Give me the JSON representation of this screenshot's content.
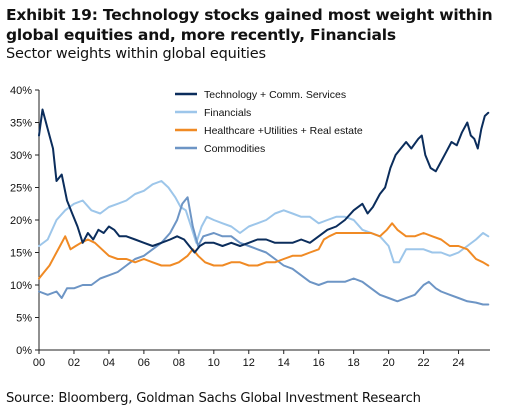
{
  "title": "Exhibit 19: Technology stocks gained most weight within global equities and, more recently, Financials",
  "subtitle": "Sector weights within global equities",
  "source": "Source: Bloomberg, Goldman Sachs Global Investment Research",
  "chart_data": {
    "type": "line",
    "xlabel": "",
    "ylabel": "",
    "xlim": [
      2000,
      2025.8
    ],
    "ylim": [
      0,
      40
    ],
    "x_ticks": [
      "00",
      "02",
      "04",
      "06",
      "08",
      "10",
      "12",
      "14",
      "16",
      "18",
      "20",
      "22",
      "24"
    ],
    "y_ticks": [
      "0%",
      "5%",
      "10%",
      "15%",
      "20%",
      "25%",
      "30%",
      "35%",
      "40%"
    ],
    "grid": false,
    "legend_position": "top-right",
    "series": [
      {
        "name": "Technology + Comm. Services",
        "color": "#0b2d5c",
        "points": [
          [
            2000,
            33
          ],
          [
            2000.2,
            37
          ],
          [
            2000.5,
            34
          ],
          [
            2000.8,
            31
          ],
          [
            2001,
            26
          ],
          [
            2001.3,
            27
          ],
          [
            2001.6,
            23
          ],
          [
            2001.9,
            21
          ],
          [
            2002.2,
            19
          ],
          [
            2002.5,
            16.5
          ],
          [
            2002.8,
            18
          ],
          [
            2003.1,
            17
          ],
          [
            2003.4,
            18.5
          ],
          [
            2003.7,
            18
          ],
          [
            2004,
            19
          ],
          [
            2004.3,
            18.5
          ],
          [
            2004.6,
            17.5
          ],
          [
            2005,
            17.5
          ],
          [
            2005.5,
            17
          ],
          [
            2006,
            16.5
          ],
          [
            2006.5,
            16
          ],
          [
            2007,
            16.5
          ],
          [
            2007.5,
            17
          ],
          [
            2007.9,
            17.5
          ],
          [
            2008.3,
            17
          ],
          [
            2008.6,
            16
          ],
          [
            2008.9,
            15
          ],
          [
            2009.2,
            16
          ],
          [
            2009.5,
            16.5
          ],
          [
            2010,
            16.5
          ],
          [
            2010.5,
            16
          ],
          [
            2011,
            16.5
          ],
          [
            2011.5,
            16
          ],
          [
            2012,
            16.5
          ],
          [
            2012.5,
            17
          ],
          [
            2013,
            17
          ],
          [
            2013.5,
            16.5
          ],
          [
            2014,
            16.5
          ],
          [
            2014.5,
            16.5
          ],
          [
            2015,
            17
          ],
          [
            2015.5,
            16.5
          ],
          [
            2016,
            17.5
          ],
          [
            2016.5,
            18.5
          ],
          [
            2017,
            19
          ],
          [
            2017.5,
            20
          ],
          [
            2018,
            21.5
          ],
          [
            2018.5,
            22.5
          ],
          [
            2018.8,
            21
          ],
          [
            2019.1,
            22
          ],
          [
            2019.5,
            24
          ],
          [
            2019.8,
            25
          ],
          [
            2020.1,
            28
          ],
          [
            2020.4,
            30
          ],
          [
            2020.7,
            31
          ],
          [
            2021,
            32
          ],
          [
            2021.3,
            31
          ],
          [
            2021.7,
            32.5
          ],
          [
            2021.9,
            33
          ],
          [
            2022.1,
            30
          ],
          [
            2022.4,
            28
          ],
          [
            2022.7,
            27.5
          ],
          [
            2023,
            29
          ],
          [
            2023.3,
            30.5
          ],
          [
            2023.6,
            32
          ],
          [
            2023.9,
            31.5
          ],
          [
            2024.2,
            33.5
          ],
          [
            2024.5,
            35
          ],
          [
            2024.7,
            33
          ],
          [
            2024.9,
            32.5
          ],
          [
            2025.1,
            31
          ],
          [
            2025.3,
            34
          ],
          [
            2025.5,
            36
          ],
          [
            2025.7,
            36.5
          ]
        ]
      },
      {
        "name": "Financials",
        "color": "#9dc6ea",
        "points": [
          [
            2000,
            16
          ],
          [
            2000.5,
            17
          ],
          [
            2001,
            20
          ],
          [
            2001.5,
            21.5
          ],
          [
            2002,
            22.5
          ],
          [
            2002.5,
            23
          ],
          [
            2003,
            21.5
          ],
          [
            2003.5,
            21
          ],
          [
            2004,
            22
          ],
          [
            2004.5,
            22.5
          ],
          [
            2005,
            23
          ],
          [
            2005.5,
            24
          ],
          [
            2006,
            24.5
          ],
          [
            2006.5,
            25.5
          ],
          [
            2007,
            26
          ],
          [
            2007.4,
            25
          ],
          [
            2007.8,
            23.5
          ],
          [
            2008.1,
            22
          ],
          [
            2008.4,
            21.5
          ],
          [
            2008.7,
            19
          ],
          [
            2009,
            16.5
          ],
          [
            2009.3,
            19
          ],
          [
            2009.6,
            20.5
          ],
          [
            2010,
            20
          ],
          [
            2010.5,
            19.5
          ],
          [
            2011,
            19
          ],
          [
            2011.5,
            18
          ],
          [
            2012,
            19
          ],
          [
            2012.5,
            19.5
          ],
          [
            2013,
            20
          ],
          [
            2013.5,
            21
          ],
          [
            2014,
            21.5
          ],
          [
            2014.5,
            21
          ],
          [
            2015,
            20.5
          ],
          [
            2015.5,
            20.5
          ],
          [
            2016,
            19.5
          ],
          [
            2016.5,
            20
          ],
          [
            2017,
            20.5
          ],
          [
            2017.5,
            20.5
          ],
          [
            2018,
            20
          ],
          [
            2018.5,
            18.5
          ],
          [
            2019,
            18
          ],
          [
            2019.5,
            17.5
          ],
          [
            2020,
            16
          ],
          [
            2020.3,
            13.5
          ],
          [
            2020.6,
            13.5
          ],
          [
            2021,
            15.5
          ],
          [
            2021.5,
            15.5
          ],
          [
            2022,
            15.5
          ],
          [
            2022.5,
            15
          ],
          [
            2023,
            15
          ],
          [
            2023.5,
            14.5
          ],
          [
            2024,
            15
          ],
          [
            2024.5,
            16
          ],
          [
            2025,
            17
          ],
          [
            2025.4,
            18
          ],
          [
            2025.7,
            17.5
          ]
        ]
      },
      {
        "name": "Healthcare +Utilities + Real estate",
        "color": "#f08a24",
        "points": [
          [
            2000,
            11
          ],
          [
            2000.3,
            12
          ],
          [
            2000.6,
            13
          ],
          [
            2000.9,
            14.5
          ],
          [
            2001.2,
            16
          ],
          [
            2001.5,
            17.5
          ],
          [
            2001.8,
            15.5
          ],
          [
            2002.1,
            16
          ],
          [
            2002.4,
            16.5
          ],
          [
            2002.8,
            17
          ],
          [
            2003.2,
            16.5
          ],
          [
            2003.6,
            15.5
          ],
          [
            2004,
            14.5
          ],
          [
            2004.5,
            14
          ],
          [
            2005,
            14
          ],
          [
            2005.5,
            13.5
          ],
          [
            2006,
            14
          ],
          [
            2006.5,
            13.5
          ],
          [
            2007,
            13
          ],
          [
            2007.5,
            13
          ],
          [
            2008,
            13.5
          ],
          [
            2008.5,
            14.5
          ],
          [
            2008.8,
            15.5
          ],
          [
            2009.1,
            14.5
          ],
          [
            2009.5,
            13.5
          ],
          [
            2010,
            13
          ],
          [
            2010.5,
            13
          ],
          [
            2011,
            13.5
          ],
          [
            2011.5,
            13.5
          ],
          [
            2012,
            13
          ],
          [
            2012.5,
            13
          ],
          [
            2013,
            13.5
          ],
          [
            2013.5,
            13.5
          ],
          [
            2014,
            14
          ],
          [
            2014.5,
            14.5
          ],
          [
            2015,
            14.5
          ],
          [
            2015.5,
            15
          ],
          [
            2016,
            15.5
          ],
          [
            2016.3,
            17
          ],
          [
            2016.6,
            17.5
          ],
          [
            2017,
            18
          ],
          [
            2017.5,
            18
          ],
          [
            2018,
            18
          ],
          [
            2018.5,
            18
          ],
          [
            2019,
            18
          ],
          [
            2019.5,
            17.5
          ],
          [
            2019.9,
            18.5
          ],
          [
            2020.2,
            19.5
          ],
          [
            2020.5,
            18.5
          ],
          [
            2021,
            17.5
          ],
          [
            2021.5,
            17.5
          ],
          [
            2022,
            18
          ],
          [
            2022.5,
            17.5
          ],
          [
            2023,
            17
          ],
          [
            2023.5,
            16
          ],
          [
            2024,
            16
          ],
          [
            2024.5,
            15.5
          ],
          [
            2025,
            14
          ],
          [
            2025.4,
            13.5
          ],
          [
            2025.7,
            13
          ]
        ]
      },
      {
        "name": "Commodities",
        "color": "#6d95c5",
        "points": [
          [
            2000,
            9
          ],
          [
            2000.5,
            8.5
          ],
          [
            2001,
            9
          ],
          [
            2001.3,
            8
          ],
          [
            2001.6,
            9.5
          ],
          [
            2002,
            9.5
          ],
          [
            2002.5,
            10
          ],
          [
            2003,
            10
          ],
          [
            2003.5,
            11
          ],
          [
            2004,
            11.5
          ],
          [
            2004.5,
            12
          ],
          [
            2005,
            13
          ],
          [
            2005.5,
            14
          ],
          [
            2006,
            14.5
          ],
          [
            2006.5,
            15.5
          ],
          [
            2007,
            16.5
          ],
          [
            2007.5,
            18
          ],
          [
            2007.9,
            20
          ],
          [
            2008.2,
            22.5
          ],
          [
            2008.5,
            23.5
          ],
          [
            2008.8,
            19
          ],
          [
            2009.1,
            16
          ],
          [
            2009.4,
            17.5
          ],
          [
            2010,
            18
          ],
          [
            2010.5,
            17.5
          ],
          [
            2011,
            17.5
          ],
          [
            2011.5,
            16.5
          ],
          [
            2012,
            16
          ],
          [
            2012.5,
            15.5
          ],
          [
            2013,
            15
          ],
          [
            2013.5,
            14
          ],
          [
            2014,
            13
          ],
          [
            2014.5,
            12.5
          ],
          [
            2015,
            11.5
          ],
          [
            2015.5,
            10.5
          ],
          [
            2016,
            10
          ],
          [
            2016.5,
            10.5
          ],
          [
            2017,
            10.5
          ],
          [
            2017.5,
            10.5
          ],
          [
            2018,
            11
          ],
          [
            2018.5,
            10.5
          ],
          [
            2019,
            9.5
          ],
          [
            2019.5,
            8.5
          ],
          [
            2020,
            8
          ],
          [
            2020.5,
            7.5
          ],
          [
            2021,
            8
          ],
          [
            2021.5,
            8.5
          ],
          [
            2022,
            10
          ],
          [
            2022.3,
            10.5
          ],
          [
            2022.7,
            9.5
          ],
          [
            2023,
            9
          ],
          [
            2023.5,
            8.5
          ],
          [
            2024,
            8
          ],
          [
            2024.5,
            7.5
          ],
          [
            2025,
            7.3
          ],
          [
            2025.4,
            7
          ],
          [
            2025.7,
            7
          ]
        ]
      }
    ]
  }
}
